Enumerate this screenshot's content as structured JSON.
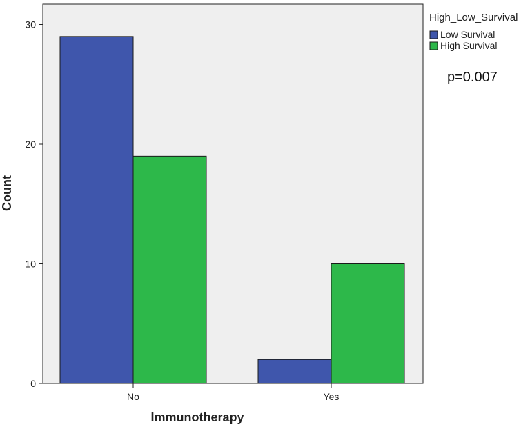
{
  "chart_data": {
    "type": "bar",
    "xlabel": "Immunotherapy",
    "ylabel": "Count",
    "categories": [
      "No",
      "Yes"
    ],
    "series": [
      {
        "name": "Low Survival",
        "values": [
          29,
          2
        ],
        "color": "#3F56AC"
      },
      {
        "name": "High Survival",
        "values": [
          19,
          10
        ],
        "color": "#2DB84A"
      }
    ],
    "ylim": [
      0,
      31
    ],
    "yticks": [
      0,
      10,
      20,
      30
    ],
    "legend": {
      "title": "High_Low_Survival",
      "position": "top-right"
    },
    "annotation": "p=0.007",
    "plot_background": "#EFEFEF",
    "grid": false
  }
}
